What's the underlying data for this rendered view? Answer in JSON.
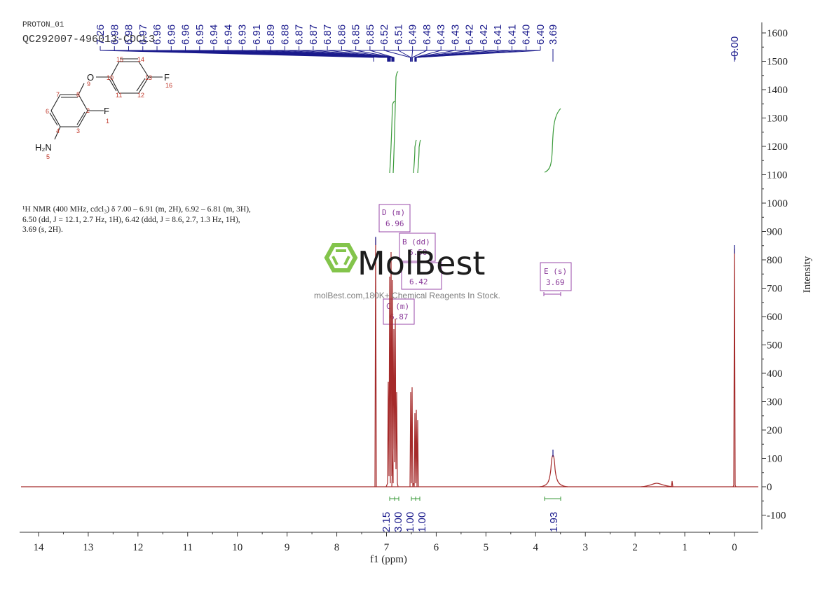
{
  "header": {
    "experiment": "PROTON_01",
    "sample": "QC292007-496013-CDCL3"
  },
  "nmr_description": {
    "line1": "¹H NMR (400 MHz, cdcl₃) δ 7.00 – 6.91 (m, 2H), 6.92 – 6.81 (m, 3H),",
    "line2": "6.50 (dd, J = 12.1, 2.7 Hz, 1H), 6.42 (ddd, J = 8.6, 2.7, 1.3 Hz, 1H),",
    "line3": "3.69 (s, 2H)."
  },
  "watermark": {
    "brand": "MolBest",
    "tagline": "molBest.com,180K+ Chemical Reagents In Stock.",
    "logo_color": "#7dc142"
  },
  "structure": {
    "atoms": {
      "F1": "F",
      "F1_num": "1",
      "N5": "H₂N",
      "N5_num": "5",
      "O9": "O",
      "O9_num": "9",
      "F16": "F",
      "F16_num": "16"
    },
    "numbers": [
      "2",
      "3",
      "4",
      "6",
      "7",
      "8",
      "10",
      "11",
      "12",
      "13",
      "14",
      "15"
    ]
  },
  "colors": {
    "spectrum": "#a52a2a",
    "peak_label": "#1a1a8c",
    "integral": "#3a9a3a",
    "multiplet_box": "#9a4aaa",
    "axis": "#333333"
  },
  "chart_data": {
    "type": "line",
    "title": "QC292007-496013-CDCL3",
    "subtitle": "PROTON_01",
    "xlabel": "f1 (ppm)",
    "ylabel": "Intensity",
    "xlim": [
      14.5,
      -0.5
    ],
    "ylim": [
      -150,
      1650
    ],
    "x_reversed": true,
    "x_ticks": [
      14,
      13,
      12,
      11,
      10,
      9,
      8,
      7,
      6,
      5,
      4,
      3,
      2,
      1,
      0
    ],
    "y_ticks": [
      -100,
      0,
      100,
      200,
      300,
      400,
      500,
      600,
      700,
      800,
      900,
      1000,
      1100,
      1200,
      1300,
      1400,
      1500,
      1600
    ],
    "grid": false,
    "peak_labels": [
      "7.26",
      "6.98",
      "6.98",
      "6.97",
      "6.96",
      "6.96",
      "6.96",
      "6.95",
      "6.94",
      "6.94",
      "6.93",
      "6.91",
      "6.89",
      "6.88",
      "6.87",
      "6.87",
      "6.87",
      "6.86",
      "6.85",
      "6.85",
      "6.52",
      "6.51",
      "6.49",
      "6.48",
      "6.43",
      "6.43",
      "6.42",
      "6.42",
      "6.41",
      "6.41",
      "6.40",
      "6.40",
      "3.69",
      "-0.00"
    ],
    "peaks": [
      {
        "ppm": 7.26,
        "intensity": 870,
        "note": "CDCl3"
      },
      {
        "ppm": 6.96,
        "intensity": 760
      },
      {
        "ppm": 6.87,
        "intensity": 740
      },
      {
        "ppm": 6.5,
        "intensity": 350
      },
      {
        "ppm": 6.42,
        "intensity": 270
      },
      {
        "ppm": 3.69,
        "intensity": 120
      },
      {
        "ppm": 1.56,
        "intensity": 10
      },
      {
        "ppm": 1.26,
        "intensity": 20
      },
      {
        "ppm": 0.0,
        "intensity": 840,
        "note": "TMS"
      }
    ],
    "multiplets": [
      {
        "label": "D (m)",
        "shift": "6.96"
      },
      {
        "label": "B (dd)",
        "shift": "6.50"
      },
      {
        "label": "A (ddd)",
        "shift": "6.42"
      },
      {
        "label": "C (m)",
        "shift": "6.87"
      },
      {
        "label": "E (s)",
        "shift": "3.69"
      }
    ],
    "integrals": [
      {
        "range": [
          7.0,
          6.91
        ],
        "value": "2.15"
      },
      {
        "range": [
          6.92,
          6.81
        ],
        "value": "3.00"
      },
      {
        "range": [
          6.53,
          6.47
        ],
        "value": "1.00"
      },
      {
        "range": [
          6.45,
          6.39
        ],
        "value": "1.00"
      },
      {
        "range": [
          3.9,
          3.5
        ],
        "value": "1.93"
      }
    ]
  }
}
